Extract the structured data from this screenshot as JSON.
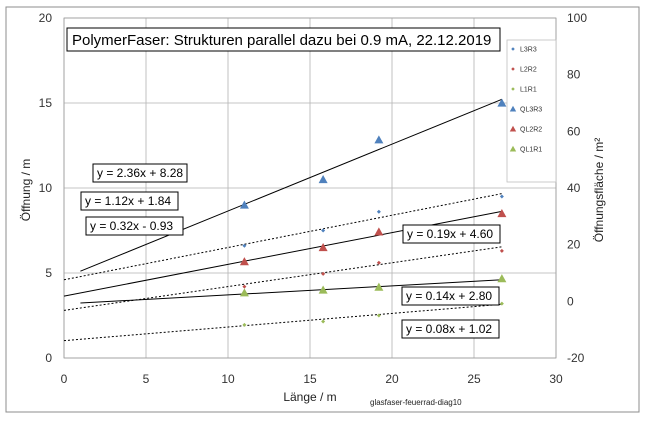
{
  "chart_data": {
    "type": "scatter",
    "title": "PolymerFaser:  Strukturen parallel dazu bei 0.9 mA, 22.12.2019",
    "xlabel": "Länge / m",
    "ylabel": "Öffnung / m",
    "y2label": "Öffnungsfläche / m²",
    "xlim": [
      0,
      30
    ],
    "ylim": [
      0,
      20
    ],
    "y2lim": [
      -20,
      100
    ],
    "xticks": [
      "0",
      "5",
      "10",
      "15",
      "20",
      "25",
      "30"
    ],
    "yticks": [
      "0",
      "5",
      "10",
      "15",
      "20"
    ],
    "y2ticks": [
      "-20",
      "0",
      "20",
      "40",
      "60",
      "80",
      "100"
    ],
    "grid": true,
    "legend_position": "top-right",
    "footer_label": "glasfaser-feuerrad-diag10",
    "series": [
      {
        "name": "L3R3",
        "axis": "left",
        "marker": "diamond",
        "color": "#4F81BD",
        "x": [
          11,
          15.8,
          19.2,
          26.7
        ],
        "y": [
          6.6,
          7.5,
          8.6,
          9.5
        ]
      },
      {
        "name": "L2R2",
        "axis": "left",
        "marker": "diamond",
        "color": "#C0504D",
        "x": [
          11,
          15.8,
          19.2,
          26.7
        ],
        "y": [
          4.2,
          4.95,
          5.6,
          6.3
        ]
      },
      {
        "name": "L1R1",
        "axis": "left",
        "marker": "diamond",
        "color": "#9BBB59",
        "x": [
          11,
          15.8,
          19.2,
          26.7
        ],
        "y": [
          1.95,
          2.15,
          2.5,
          3.2
        ]
      },
      {
        "name": "QL3R3",
        "axis": "right",
        "marker": "triangle",
        "color": "#4F81BD",
        "x": [
          11,
          15.8,
          19.2,
          26.7
        ],
        "y": [
          34,
          43,
          57,
          70
        ]
      },
      {
        "name": "QL2R2",
        "axis": "right",
        "marker": "triangle",
        "color": "#C0504D",
        "x": [
          11,
          15.8,
          19.2,
          26.7
        ],
        "y": [
          14,
          19,
          24.5,
          31
        ]
      },
      {
        "name": "QL1R1",
        "axis": "right",
        "marker": "triangle",
        "color": "#9BBB59",
        "x": [
          11,
          15.8,
          19.2,
          26.7
        ],
        "y": [
          3,
          4,
          5,
          8
        ]
      }
    ],
    "trendlines": [
      {
        "label": "y = 2.36x + 8.28",
        "axis": "right",
        "style": "solid",
        "x": [
          1,
          26.7
        ],
        "y": [
          10.64,
          71.29
        ]
      },
      {
        "label": "y = 1.12x + 1.84",
        "axis": "right",
        "style": "solid",
        "x": [
          0,
          26.7
        ],
        "y": [
          1.84,
          31.74
        ]
      },
      {
        "label": "y = 0.32x - 0.93",
        "axis": "right",
        "style": "solid",
        "x": [
          1,
          26.7
        ],
        "y": [
          -0.61,
          7.61
        ]
      },
      {
        "label": "y = 0.19x + 4.60",
        "axis": "left",
        "style": "dotted",
        "x": [
          0,
          26.7
        ],
        "y": [
          4.6,
          9.67
        ]
      },
      {
        "label": "y = 0.14x + 2.80",
        "axis": "left",
        "style": "dotted",
        "x": [
          0,
          26.7
        ],
        "y": [
          2.8,
          6.54
        ]
      },
      {
        "label": "y = 0.08x + 1.02",
        "axis": "left",
        "style": "dotted",
        "x": [
          0,
          26.7
        ],
        "y": [
          1.02,
          3.16
        ]
      }
    ]
  }
}
